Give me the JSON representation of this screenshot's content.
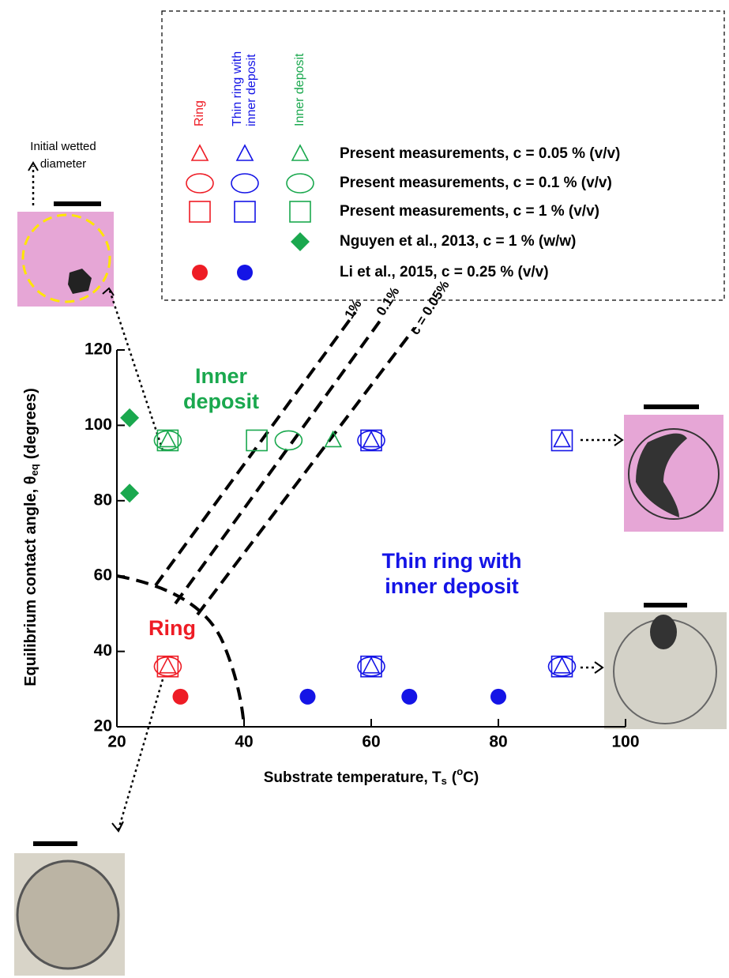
{
  "chart_data": {
    "type": "scatter",
    "x_label": [
      "Substrate temperature, T",
      "s",
      "(",
      "o",
      "C)"
    ],
    "y_label": [
      "Equilibrium contact angle, θ",
      "eq",
      "(degrees)"
    ],
    "xlim": [
      20,
      100
    ],
    "ylim": [
      20,
      120
    ],
    "xticks": [
      20,
      40,
      60,
      80,
      100
    ],
    "yticks": [
      20,
      40,
      60,
      80,
      100,
      120
    ],
    "legend": {
      "columns": [
        {
          "label": [
            "Ring"
          ],
          "color": "#ee1c25"
        },
        {
          "label": [
            "Thin ring with",
            "inner deposit"
          ],
          "color": "#1414e6"
        },
        {
          "label": [
            "Inner deposit"
          ],
          "color": "#1aa84e"
        }
      ],
      "rows": [
        {
          "label": "Present measurements, c = 0.05 % (v/v)",
          "marker": "triangle"
        },
        {
          "label": "Present measurements, c = 0.1 % (v/v)",
          "marker": "ellipse"
        },
        {
          "label": "Present measurements, c = 1 % (v/v)",
          "marker": "square"
        },
        {
          "label": "Nguyen et al., 2013, c = 1 % (w/w)",
          "marker": "diamond"
        },
        {
          "label": "Li et al., 2015, c = 0.25 % (v/v)",
          "marker": "circle-filled"
        }
      ]
    },
    "series": [
      {
        "marker": "triangle",
        "color": "#1aa84e",
        "x": [
          28,
          54
        ],
        "values": [
          96,
          96
        ]
      },
      {
        "marker": "ellipse",
        "color": "#1aa84e",
        "x": [
          28,
          47
        ],
        "values": [
          96,
          96
        ]
      },
      {
        "marker": "square",
        "color": "#1aa84e",
        "x": [
          28,
          42
        ],
        "values": [
          96,
          96
        ]
      },
      {
        "marker": "triangle",
        "color": "#1414e6",
        "x": [
          60,
          90,
          60,
          90
        ],
        "values": [
          96,
          96,
          36,
          36
        ]
      },
      {
        "marker": "ellipse",
        "color": "#1414e6",
        "x": [
          60,
          60,
          90
        ],
        "values": [
          96,
          36,
          36
        ]
      },
      {
        "marker": "square",
        "color": "#1414e6",
        "x": [
          60,
          90,
          60,
          90
        ],
        "values": [
          96,
          96,
          36,
          36
        ]
      },
      {
        "marker": "triangle",
        "color": "#ee1c25",
        "x": [
          28
        ],
        "values": [
          36
        ]
      },
      {
        "marker": "ellipse",
        "color": "#ee1c25",
        "x": [
          28
        ],
        "values": [
          36
        ]
      },
      {
        "marker": "square",
        "color": "#ee1c25",
        "x": [
          28
        ],
        "values": [
          36
        ]
      },
      {
        "marker": "diamond",
        "color": "#1aa84e",
        "x": [
          22,
          22
        ],
        "values": [
          102,
          82
        ]
      },
      {
        "marker": "circle-filled",
        "color": "#ee1c25",
        "x": [
          30
        ],
        "values": [
          28
        ]
      },
      {
        "marker": "circle-filled",
        "color": "#1414e6",
        "x": [
          50,
          66,
          80
        ],
        "values": [
          28,
          28,
          28
        ]
      }
    ],
    "regions": [
      {
        "text": [
          "Inner",
          "deposit"
        ],
        "color": "#1aa84e"
      },
      {
        "text": [
          "Thin ring with",
          "inner deposit"
        ],
        "color": "#1414e6"
      },
      {
        "text": [
          "Ring"
        ],
        "color": "#ee1c25"
      }
    ],
    "line_labels": [
      "1%",
      "0.1%",
      "c = 0.05%"
    ],
    "photo_label": [
      "Initial wetted",
      "diameter"
    ]
  }
}
